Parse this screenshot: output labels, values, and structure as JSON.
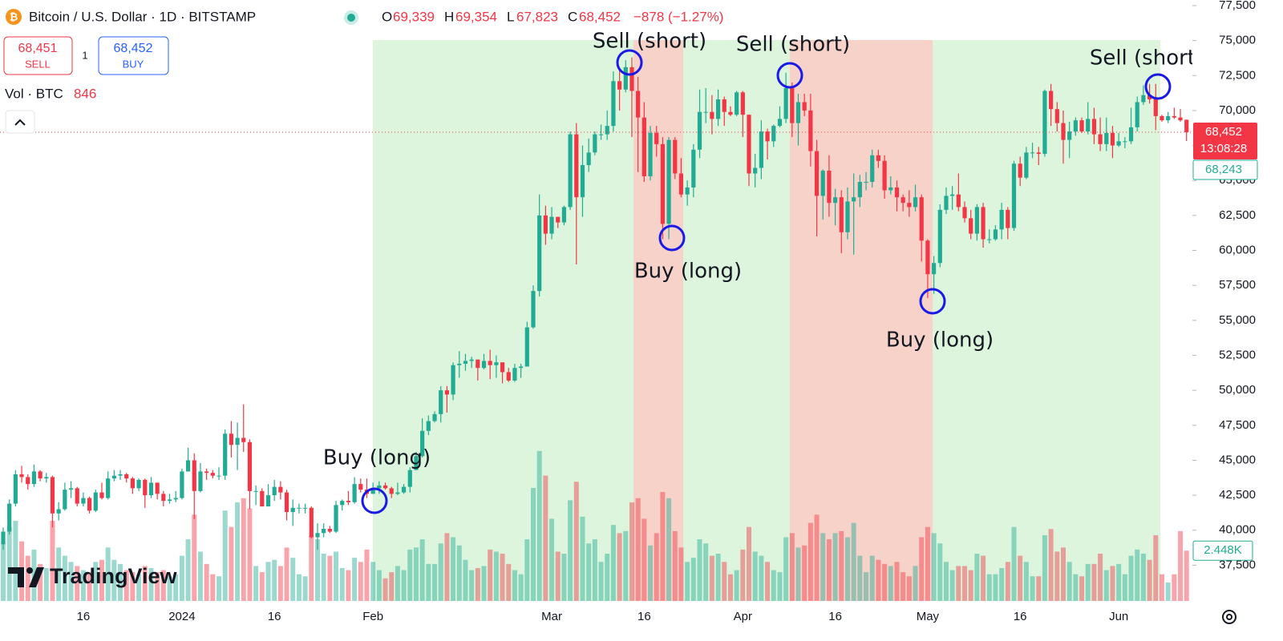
{
  "chart_data": {
    "type": "candlestick",
    "title": "Bitcoin / U.S. Dollar · 1D · BITSTAMP",
    "categories": [
      null,
      null,
      null,
      null,
      null,
      null,
      null,
      null,
      null,
      null,
      null,
      null,
      null,
      "16",
      null,
      null,
      null,
      null,
      null,
      null,
      null,
      null,
      null,
      null,
      null,
      null,
      null,
      null,
      null,
      "2024",
      null,
      null,
      null,
      null,
      null,
      null,
      null,
      null,
      null,
      null,
      null,
      null,
      null,
      null,
      "16",
      null,
      null,
      null,
      null,
      null,
      null,
      null,
      null,
      null,
      null,
      null,
      null,
      null,
      null,
      null,
      "Feb",
      null,
      null,
      null,
      null,
      null,
      null,
      null,
      null,
      null,
      null,
      null,
      null,
      null,
      null,
      null,
      null,
      null,
      null,
      null,
      null,
      null,
      null,
      null,
      null,
      null,
      null,
      null,
      null,
      "Mar",
      null,
      null,
      null,
      null,
      null,
      null,
      null,
      null,
      null,
      null,
      null,
      null,
      null,
      null,
      "16",
      null,
      null,
      null,
      null,
      null,
      null,
      null,
      null,
      null,
      null,
      null,
      null,
      null,
      null,
      null,
      "Apr",
      null,
      null,
      null,
      null,
      null,
      null,
      null,
      null,
      null,
      null,
      null,
      null,
      null,
      null,
      "16",
      null,
      null,
      null,
      null,
      null,
      null,
      null,
      null,
      null,
      null,
      null,
      null,
      null,
      null,
      "May",
      null,
      null,
      null,
      null,
      null,
      null,
      null,
      null,
      null,
      null,
      null,
      null,
      null,
      null,
      "16",
      null,
      null,
      null,
      null,
      null,
      null,
      null,
      null,
      null,
      null,
      null,
      null,
      null,
      null,
      null,
      "Jun",
      null,
      null,
      null,
      null,
      null,
      null,
      null,
      null,
      null,
      null,
      null
    ],
    "open": [
      39000,
      39900,
      41900,
      44000,
      43800,
      43300,
      44200,
      43700,
      43800,
      41200,
      41500,
      42900,
      43000,
      41900,
      42300,
      41400,
      42700,
      42300,
      43700,
      43900,
      44000,
      43700,
      43000,
      43600,
      42500,
      43400,
      42600,
      42100,
      42200,
      42300,
      44200,
      45000,
      42800,
      44200,
      44100,
      43900,
      43900,
      46900,
      46100,
      46600,
      46300,
      42800,
      42800,
      41700,
      42500,
      43100,
      42700,
      41300,
      41600,
      41600,
      41600,
      39500,
      39800,
      40100,
      39900,
      41800,
      42100,
      42000,
      43300,
      42900,
      42600,
      43000,
      43200,
      43000,
      42600,
      42700,
      43100,
      44300,
      45300,
      47100,
      47800,
      48300,
      50000,
      49700,
      51800,
      51900,
      52100,
      52200,
      51600,
      52100,
      51800,
      52000,
      51300,
      50700,
      51600,
      51700,
      54500,
      57100,
      62500,
      61200,
      62400,
      62000,
      63100,
      68300,
      63800,
      66100,
      67000,
      68300,
      68300,
      68900,
      72100,
      71500,
      73100,
      71400,
      69500,
      65300,
      68400,
      67600,
      61900,
      67900,
      65500,
      64000,
      64500,
      67200,
      69900,
      69900,
      69400,
      70800,
      69900,
      69700,
      71300,
      69700,
      65500,
      65900,
      68500,
      67800,
      68900,
      69400,
      71600,
      69100,
      70600,
      70000,
      67100,
      63900,
      65700,
      63400,
      63800,
      61300,
      63500,
      63800,
      64900,
      64900,
      66800,
      66400,
      64300,
      64500,
      63800,
      63400,
      63100,
      63800,
      60700,
      58300,
      59100,
      62900,
      63900,
      64000,
      63100,
      62300,
      61200,
      63100,
      60800,
      60800,
      61500,
      62900,
      61600,
      66200,
      65200,
      67000,
      67000,
      66900,
      71400,
      70100,
      69100,
      67900,
      68500,
      69300,
      68500,
      69400,
      68300,
      67600,
      68400,
      67500,
      67800,
      67800,
      68800,
      70600,
      71100,
      70800,
      69600,
      69300,
      69600,
      69500,
      69339
    ],
    "high": [
      40200,
      42200,
      44300,
      44600,
      44000,
      44700,
      44300,
      44100,
      43900,
      42000,
      43400,
      43500,
      43100,
      42700,
      42400,
      42900,
      43400,
      44200,
      44300,
      44300,
      44100,
      43800,
      43700,
      43700,
      43800,
      43400,
      42800,
      42600,
      42800,
      44400,
      45900,
      45500,
      44800,
      44400,
      44300,
      44500,
      47200,
      47800,
      47700,
      49000,
      46500,
      43200,
      43000,
      43300,
      43600,
      43500,
      42900,
      42200,
      41900,
      41900,
      41700,
      40500,
      40500,
      40300,
      42100,
      42200,
      42800,
      43800,
      43700,
      43700,
      43400,
      43500,
      43400,
      43100,
      43400,
      43300,
      44500,
      45600,
      48000,
      48200,
      48500,
      50300,
      50300,
      52000,
      52800,
      52600,
      52400,
      52200,
      52600,
      52900,
      52500,
      52000,
      51600,
      51900,
      51900,
      54900,
      57500,
      64000,
      63200,
      63100,
      62400,
      63200,
      68500,
      69100,
      67500,
      68000,
      68500,
      69000,
      70000,
      72800,
      73000,
      73600,
      73800,
      72400,
      70600,
      68900,
      68900,
      68100,
      68100,
      68100,
      66600,
      65000,
      67600,
      71500,
      71600,
      71100,
      71500,
      71000,
      70300,
      71400,
      71400,
      69700,
      66900,
      69300,
      68700,
      69000,
      70300,
      72700,
      72000,
      71200,
      71200,
      71200,
      67900,
      65800,
      66800,
      64400,
      64300,
      64500,
      65500,
      65400,
      65600,
      67200,
      67200,
      66800,
      65300,
      65000,
      64000,
      64300,
      64700,
      64000,
      60800,
      59600,
      63300,
      64500,
      64600,
      65500,
      63500,
      62900,
      63300,
      63400,
      61500,
      61800,
      63400,
      63100,
      66400,
      66700,
      67400,
      67700,
      67400,
      71500,
      71900,
      70600,
      70000,
      69200,
      69500,
      69500,
      70600,
      70200,
      69500,
      69500,
      68900,
      68400,
      68100,
      70200,
      71000,
      71800,
      71900,
      71900,
      69700,
      69900,
      70200,
      70100,
      69354
    ],
    "low": [
      38600,
      39700,
      41700,
      43400,
      42900,
      43100,
      43500,
      43400,
      40200,
      40700,
      41400,
      42300,
      41700,
      41700,
      41200,
      41300,
      42200,
      42200,
      43500,
      43600,
      43400,
      42600,
      42800,
      41600,
      42300,
      42200,
      41700,
      41900,
      42000,
      42200,
      44200,
      40800,
      42700,
      43600,
      43700,
      43600,
      43600,
      45200,
      44300,
      45600,
      41500,
      41800,
      41700,
      41700,
      42100,
      42200,
      40700,
      40300,
      41200,
      41200,
      39400,
      38600,
      39500,
      39800,
      39800,
      41400,
      41800,
      41900,
      42700,
      42300,
      42600,
      42600,
      42900,
      42300,
      42500,
      42600,
      42700,
      44300,
      45200,
      46800,
      47700,
      47700,
      48400,
      49300,
      50900,
      51400,
      51600,
      50700,
      51500,
      50800,
      50900,
      50500,
      50600,
      50600,
      50900,
      51700,
      54400,
      56700,
      60400,
      60800,
      61600,
      61800,
      62900,
      59000,
      62400,
      65600,
      66800,
      67900,
      67900,
      68500,
      70000,
      71300,
      68100,
      65600,
      64900,
      65000,
      66700,
      60800,
      60800,
      65100,
      63800,
      63200,
      63800,
      66600,
      69100,
      68300,
      68900,
      68900,
      69600,
      69600,
      68100,
      64600,
      64500,
      65100,
      66500,
      67400,
      68800,
      69100,
      68100,
      67500,
      69600,
      66000,
      61000,
      62200,
      62400,
      61800,
      59800,
      60800,
      59700,
      63100,
      64300,
      64500,
      65900,
      63700,
      64000,
      62800,
      62800,
      62400,
      62800,
      59200,
      56600,
      56900,
      58800,
      62600,
      62900,
      62800,
      62000,
      60800,
      60700,
      60200,
      60500,
      60700,
      60800,
      60800,
      61400,
      64600,
      65100,
      66600,
      66100,
      66700,
      68900,
      68500,
      66200,
      66600,
      68200,
      68400,
      68300,
      67600,
      67100,
      67100,
      66600,
      67400,
      67300,
      67600,
      68500,
      70400,
      70500,
      68600,
      69200,
      69100,
      69400,
      69200,
      67823
    ],
    "close": [
      39900,
      41900,
      44000,
      43800,
      43300,
      44200,
      43700,
      43800,
      41200,
      41500,
      42900,
      43000,
      41900,
      42300,
      41400,
      42700,
      42300,
      43700,
      43900,
      44000,
      43700,
      43000,
      43600,
      42500,
      43400,
      42600,
      42100,
      42200,
      42300,
      44200,
      45000,
      42800,
      44200,
      44100,
      43900,
      43900,
      46900,
      46100,
      46600,
      46300,
      42800,
      42800,
      41700,
      42500,
      43100,
      42700,
      41300,
      41600,
      41600,
      41600,
      39500,
      39800,
      40100,
      39900,
      41800,
      42100,
      42000,
      43300,
      42900,
      42600,
      43000,
      43200,
      43000,
      42600,
      42700,
      43100,
      44300,
      45300,
      47100,
      47800,
      48300,
      50000,
      49700,
      51800,
      51900,
      52100,
      52200,
      51600,
      52100,
      51800,
      52000,
      51300,
      50700,
      51600,
      51700,
      54500,
      57100,
      62500,
      61200,
      62400,
      62000,
      63100,
      68300,
      63800,
      66100,
      67000,
      68300,
      68300,
      68900,
      72100,
      71500,
      73100,
      71400,
      69500,
      65300,
      68400,
      67600,
      61900,
      67900,
      65500,
      64000,
      64500,
      67200,
      69900,
      69900,
      69400,
      70800,
      69900,
      69700,
      71300,
      69700,
      65500,
      65900,
      68500,
      67800,
      68900,
      69400,
      71600,
      69100,
      70600,
      70000,
      67100,
      63900,
      65700,
      63400,
      63800,
      61300,
      63500,
      63800,
      64900,
      64900,
      66800,
      66400,
      64300,
      64500,
      63800,
      63400,
      63100,
      63800,
      60700,
      58300,
      59100,
      62900,
      63900,
      64000,
      63100,
      62300,
      61200,
      63100,
      60800,
      60800,
      61500,
      62900,
      61600,
      66200,
      65200,
      67000,
      67000,
      66900,
      71400,
      70100,
      69100,
      67900,
      68500,
      69300,
      68500,
      69400,
      68300,
      67600,
      68400,
      67500,
      67800,
      67800,
      68800,
      70600,
      71100,
      70800,
      69600,
      69300,
      69600,
      69500,
      69300,
      68452
    ],
    "volume": [
      2800,
      3600,
      3900,
      2900,
      2200,
      2500,
      1800,
      1600,
      3900,
      2600,
      2200,
      1900,
      1700,
      1500,
      1400,
      1900,
      2000,
      2600,
      2000,
      1800,
      1500,
      1400,
      1300,
      1700,
      1600,
      1400,
      1500,
      1200,
      1300,
      2200,
      3000,
      4200,
      2400,
      1800,
      1300,
      1200,
      4400,
      3600,
      4800,
      5000,
      4500,
      1700,
      1400,
      1900,
      2000,
      1700,
      2600,
      2100,
      1300,
      1200,
      3200,
      3000,
      2300,
      2200,
      2400,
      1600,
      1500,
      2100,
      1900,
      2500,
      1900,
      1500,
      1100,
      1400,
      1700,
      1500,
      2500,
      2600,
      3000,
      1800,
      1800,
      2800,
      3300,
      3100,
      2700,
      2000,
      1500,
      1600,
      1700,
      2500,
      2400,
      2300,
      1800,
      1500,
      1300,
      3000,
      5500,
      7300,
      6100,
      4000,
      2400,
      2300,
      4900,
      5800,
      4100,
      2800,
      3000,
      1900,
      2300,
      3700,
      3300,
      3400,
      4800,
      5000,
      4000,
      2700,
      3300,
      5300,
      5000,
      3400,
      2600,
      1900,
      2100,
      3000,
      2800,
      2200,
      2300,
      1900,
      1300,
      1500,
      2500,
      3600,
      2400,
      2200,
      1900,
      1500,
      1400,
      3100,
      3300,
      2600,
      2700,
      3800,
      4200,
      3300,
      3000,
      3300,
      3400,
      3100,
      3800,
      2200,
      1400,
      2200,
      2000,
      1800,
      1700,
      1900,
      1400,
      1200,
      1700,
      3100,
      3600,
      3300,
      2800,
      1900,
      1500,
      1700,
      1700,
      1500,
      2300,
      2200,
      1300,
      1300,
      1600,
      1900,
      3600,
      2200,
      1900,
      1200,
      1200,
      3200,
      3500,
      2400,
      2600,
      1900,
      1300,
      1200,
      1800,
      1800,
      2300,
      1500,
      1700,
      1800,
      1300,
      2200,
      2500,
      2300,
      2000,
      3200,
      1300,
      900,
      1300,
      3400,
      2448
    ],
    "up_color": "#22ab94",
    "down_color": "#f23645",
    "ylim": [
      33800,
      77900
    ],
    "volume_lim": [
      0,
      7800
    ],
    "yticks": [
      {
        "value": 37500,
        "label": "37,500"
      },
      {
        "value": 40000,
        "label": "40,000"
      },
      {
        "value": 42500,
        "label": "42,500"
      },
      {
        "value": 45000,
        "label": "45,000"
      },
      {
        "value": 47500,
        "label": "47,500"
      },
      {
        "value": 50000,
        "label": "50,000"
      },
      {
        "value": 52500,
        "label": "52,500"
      },
      {
        "value": 55000,
        "label": "55,000"
      },
      {
        "value": 57500,
        "label": "57,500"
      },
      {
        "value": 60000,
        "label": "60,000"
      },
      {
        "value": 62500,
        "label": "62,500"
      },
      {
        "value": 65000,
        "label": "65,000"
      },
      {
        "value": 67500,
        "label": "67,500"
      },
      {
        "value": 70000,
        "label": "70,000"
      },
      {
        "value": 72500,
        "label": "72,500"
      },
      {
        "value": 75000,
        "label": "75,000"
      },
      {
        "value": 77500,
        "label": "77,500"
      }
    ],
    "annotations": [
      "Buy (long)",
      "Sell (short)",
      "Buy (long)",
      "Sell (short)",
      "Buy (long)",
      "Sell (short)"
    ]
  },
  "ui": {
    "ohlc": {
      "o_label": "O",
      "o": "69,339",
      "h_label": "H",
      "h": "69,354",
      "l_label": "L",
      "l": "67,823",
      "c_label": "C",
      "c": "68,452",
      "change": "−878 (−1.27%)"
    },
    "sell_price": "68,451",
    "sell": "SELL",
    "spread": "1",
    "buy_price": "68,452",
    "buy": "BUY",
    "volume_label": "Vol · BTC",
    "volume_value": "846",
    "last_price": "68,452",
    "countdown": "13:08:28",
    "other_price": "68,243",
    "last_volume": "2.448K",
    "logo": "TradingView"
  }
}
